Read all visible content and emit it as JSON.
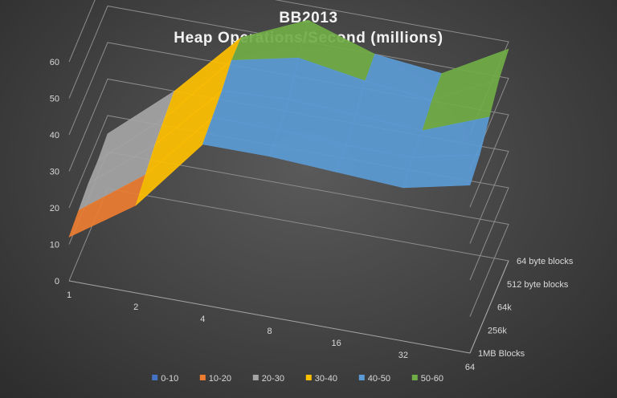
{
  "chart_data": {
    "type": "surface",
    "title": "BB2013",
    "subtitle": "Heap Operations/Second  (millions)",
    "x_categories": [
      "1",
      "2",
      "4",
      "8",
      "16",
      "32",
      "64"
    ],
    "y_categories": [
      "1MB Blocks",
      "256k",
      "64k",
      "512 byte blocks",
      "64 byte blocks"
    ],
    "z_ticks": [
      "0",
      "10",
      "20",
      "30",
      "40",
      "50",
      "60"
    ],
    "zlim": [
      0,
      60
    ],
    "values": [
      [
        12,
        24,
        44,
        44,
        43,
        42,
        46
      ],
      [
        13,
        26,
        45,
        45,
        44,
        44,
        48
      ],
      [
        14,
        28,
        46,
        47,
        46,
        45,
        52
      ],
      [
        14,
        29,
        48,
        52,
        49,
        47,
        56
      ],
      [
        15,
        30,
        48,
        56,
        50,
        48,
        58
      ]
    ],
    "legend": [
      {
        "label": "0-10",
        "color": "#4472c4"
      },
      {
        "label": "10-20",
        "color": "#ed7d31"
      },
      {
        "label": "20-30",
        "color": "#a5a5a5"
      },
      {
        "label": "30-40",
        "color": "#ffc000"
      },
      {
        "label": "40-50",
        "color": "#5b9bd5"
      },
      {
        "label": "50-60",
        "color": "#70ad47"
      }
    ],
    "grid": true,
    "legend_position": "bottom"
  }
}
